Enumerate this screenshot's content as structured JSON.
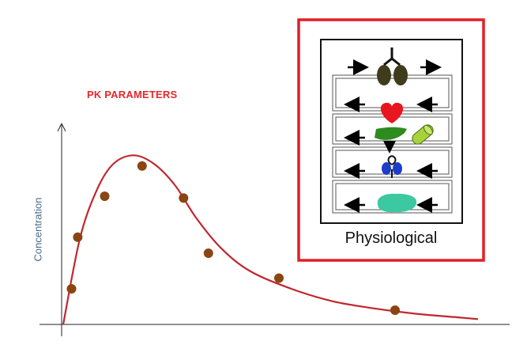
{
  "title": "PK PARAMETERS",
  "y_axis_label": "Concentration",
  "panel_caption": "Physiological",
  "colors": {
    "title": "#e8262a",
    "curve": "#c0272d",
    "points": "#8b4513",
    "panel_border": "#e31e24",
    "ylabel": "#4a6a8c"
  },
  "chart_data": {
    "type": "scatter",
    "title": "PK PARAMETERS",
    "xlabel": "",
    "ylabel": "Concentration",
    "xlim": [
      0,
      100
    ],
    "ylim": [
      0,
      100
    ],
    "grid": false,
    "points": [
      {
        "x": 2,
        "y": 20
      },
      {
        "x": 3.5,
        "y": 49
      },
      {
        "x": 10,
        "y": 72
      },
      {
        "x": 19,
        "y": 89
      },
      {
        "x": 29,
        "y": 71
      },
      {
        "x": 35,
        "y": 40
      },
      {
        "x": 52,
        "y": 26
      },
      {
        "x": 80,
        "y": 8
      }
    ],
    "fitted_curve": [
      {
        "x": 0,
        "y": 0
      },
      {
        "x": 4,
        "y": 48
      },
      {
        "x": 8,
        "y": 75
      },
      {
        "x": 12,
        "y": 90
      },
      {
        "x": 17,
        "y": 95
      },
      {
        "x": 22,
        "y": 90
      },
      {
        "x": 27,
        "y": 78
      },
      {
        "x": 32,
        "y": 60
      },
      {
        "x": 38,
        "y": 43
      },
      {
        "x": 45,
        "y": 30
      },
      {
        "x": 55,
        "y": 20
      },
      {
        "x": 65,
        "y": 13
      },
      {
        "x": 75,
        "y": 9
      },
      {
        "x": 85,
        "y": 6
      },
      {
        "x": 95,
        "y": 4
      },
      {
        "x": 100,
        "y": 3
      }
    ]
  },
  "physiological_model": {
    "compartments": [
      {
        "organ": "lungs-icon",
        "color": "#3f3c1e",
        "flow": "right"
      },
      {
        "organ": "heart-icon",
        "color": "#e8161e",
        "flow": "left"
      },
      {
        "organ": "liver-icon",
        "color": "#2e8b1e",
        "secondary": "gut-icon",
        "secondary_color": "#a8d23a",
        "flow": "left"
      },
      {
        "organ": "kidney-icon",
        "color": "#1e3cc8",
        "flow": "left"
      },
      {
        "organ": "fat-icon",
        "color": "#3cc8a0",
        "flow": "left"
      }
    ]
  }
}
